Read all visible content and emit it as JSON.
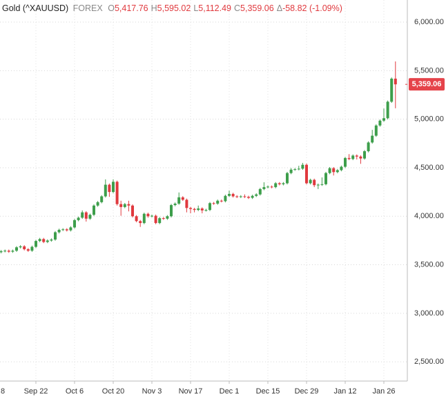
{
  "header": {
    "symbol": "Gold (^XAUUSD)",
    "exchange": "FOREX",
    "fields": [
      {
        "prefix": "O",
        "value": "5,417.76"
      },
      {
        "prefix": "H",
        "value": "5,595.02"
      },
      {
        "prefix": "L",
        "value": "5,112.49"
      },
      {
        "prefix": "C",
        "value": "5,359.06"
      },
      {
        "prefix": "Δ",
        "value": "-58.82 (-1.09%)"
      }
    ]
  },
  "chart_data": {
    "type": "candlestick",
    "categories": [
      "8",
      null,
      null,
      null,
      null,
      null,
      null,
      null,
      null,
      null,
      "Sep 22",
      null,
      null,
      null,
      null,
      null,
      null,
      null,
      null,
      null,
      "Oct 6",
      null,
      null,
      null,
      null,
      null,
      null,
      null,
      null,
      null,
      "Oct 20",
      null,
      null,
      null,
      null,
      null,
      null,
      null,
      null,
      null,
      "Nov 3",
      null,
      null,
      null,
      null,
      null,
      null,
      null,
      null,
      null,
      "Nov 17",
      null,
      null,
      null,
      null,
      null,
      null,
      null,
      null,
      null,
      "Dec 1",
      null,
      null,
      null,
      null,
      null,
      null,
      null,
      null,
      null,
      "Dec 15",
      null,
      null,
      null,
      null,
      null,
      null,
      null,
      null,
      null,
      "Dec 29",
      null,
      null,
      null,
      null,
      null,
      null,
      null,
      null,
      null,
      "Jan 12",
      null,
      null,
      null,
      null,
      null,
      null,
      null,
      null,
      null,
      "Jan 26",
      null,
      null,
      null
    ],
    "open": [
      3625,
      3630,
      3640,
      3645,
      3635,
      3645,
      3680,
      3690,
      3660,
      3645,
      3685,
      3745,
      3765,
      3735,
      3750,
      3760,
      3835,
      3860,
      3865,
      3855,
      3885,
      3960,
      3985,
      4040,
      3975,
      4015,
      4110,
      4145,
      4205,
      4325,
      4250,
      4355,
      4125,
      4095,
      4125,
      4110,
      4000,
      3950,
      3930,
      4025,
      4000,
      4005,
      3930,
      3980,
      3975,
      4000,
      4115,
      4130,
      4195,
      4170,
      4085,
      4075,
      4065,
      4080,
      4060,
      4065,
      4135,
      4130,
      4160,
      4155,
      4210,
      4230,
      4205,
      4200,
      4205,
      4200,
      4190,
      4210,
      4225,
      4280,
      4300,
      4305,
      4300,
      4340,
      4330,
      4340,
      4445,
      4480,
      4485,
      4490,
      4530,
      4340,
      4375,
      4320,
      4325,
      4330,
      4445,
      4495,
      4455,
      4475,
      4510,
      4600,
      4590,
      4625,
      4615,
      4595,
      4670,
      4760,
      4830,
      4935,
      4985,
      5010,
      5180,
      5417.76
    ],
    "high": [
      3642,
      3652,
      3657,
      3657,
      3657,
      3692,
      3702,
      3702,
      3672,
      3697,
      3757,
      3777,
      3777,
      3762,
      3772,
      3847,
      3872,
      3877,
      3877,
      3897,
      3972,
      3997,
      4060,
      4052,
      4027,
      4122,
      4157,
      4217,
      4380,
      4337,
      4381,
      4367,
      4160,
      4137,
      4160,
      4122,
      4012,
      3962,
      4037,
      4037,
      4017,
      4017,
      3992,
      3992,
      4012,
      4127,
      4142,
      4245,
      4207,
      4182,
      4097,
      4087,
      4110,
      4092,
      4077,
      4147,
      4147,
      4172,
      4172,
      4222,
      4265,
      4242,
      4217,
      4217,
      4225,
      4212,
      4222,
      4237,
      4292,
      4350,
      4317,
      4317,
      4352,
      4352,
      4352,
      4457,
      4497,
      4497,
      4520,
      4550,
      4542,
      4387,
      4387,
      4337,
      4400,
      4457,
      4507,
      4507,
      4487,
      4522,
      4612,
      4640,
      4637,
      4637,
      4627,
      4682,
      4772,
      4890,
      4947,
      4997,
      5110,
      5192,
      5430,
      5595.02
    ],
    "low": [
      3613,
      3618,
      3628,
      3623,
      3623,
      3633,
      3668,
      3648,
      3633,
      3633,
      3673,
      3733,
      3723,
      3723,
      3738,
      3748,
      3823,
      3848,
      3843,
      3843,
      3873,
      3948,
      3973,
      3945,
      3963,
      4003,
      4098,
      4133,
      4193,
      4200,
      4238,
      4110,
      4005,
      4083,
      4050,
      3988,
      3938,
      3890,
      3918,
      3985,
      3988,
      3918,
      3918,
      3963,
      3963,
      3988,
      4103,
      4118,
      4158,
      4040,
      4030,
      4040,
      4053,
      4030,
      4048,
      4053,
      4118,
      4118,
      4143,
      4143,
      4198,
      4193,
      4188,
      4188,
      4188,
      4178,
      4178,
      4198,
      4213,
      4268,
      4288,
      4288,
      4288,
      4318,
      4318,
      4328,
      4433,
      4468,
      4473,
      4478,
      4328,
      4328,
      4300,
      4280,
      4313,
      4318,
      4433,
      4420,
      4443,
      4463,
      4498,
      4578,
      4578,
      4585,
      4540,
      4583,
      4658,
      4748,
      4818,
      4923,
      4973,
      4998,
      5168,
      5112.49
    ],
    "close": [
      3630,
      3640,
      3645,
      3635,
      3645,
      3680,
      3690,
      3660,
      3645,
      3685,
      3745,
      3765,
      3735,
      3750,
      3760,
      3835,
      3860,
      3865,
      3855,
      3885,
      3960,
      3985,
      4040,
      3975,
      4015,
      4110,
      4145,
      4205,
      4325,
      4250,
      4355,
      4125,
      4095,
      4125,
      4110,
      4000,
      3950,
      3930,
      4025,
      4000,
      4005,
      3930,
      3980,
      3975,
      4000,
      4115,
      4130,
      4195,
      4170,
      4085,
      4075,
      4065,
      4080,
      4060,
      4065,
      4135,
      4130,
      4160,
      4155,
      4210,
      4230,
      4205,
      4200,
      4205,
      4200,
      4190,
      4210,
      4225,
      4280,
      4300,
      4305,
      4300,
      4340,
      4330,
      4340,
      4445,
      4480,
      4485,
      4490,
      4530,
      4340,
      4375,
      4320,
      4325,
      4330,
      4445,
      4495,
      4455,
      4475,
      4510,
      4600,
      4590,
      4625,
      4615,
      4595,
      4670,
      4760,
      4830,
      4935,
      4985,
      5010,
      5180,
      5417.76,
      5359.06
    ],
    "up_color": "#3d9e4b",
    "down_color": "#e0393e",
    "last_price_label": "5,359.06",
    "ylim": [
      2302,
      6228
    ],
    "yticks": [
      {
        "value": 2500,
        "label": "2,500.00"
      },
      {
        "value": 3000,
        "label": "3,000.00"
      },
      {
        "value": 3500,
        "label": "3,500.00"
      },
      {
        "value": 4000,
        "label": "4,000.00"
      },
      {
        "value": 4500,
        "label": "4,500.00"
      },
      {
        "value": 5000,
        "label": "5,000.00"
      },
      {
        "value": 5500,
        "label": "5,500.00"
      },
      {
        "value": 6000,
        "label": "6,000.00"
      }
    ],
    "grid": true
  }
}
